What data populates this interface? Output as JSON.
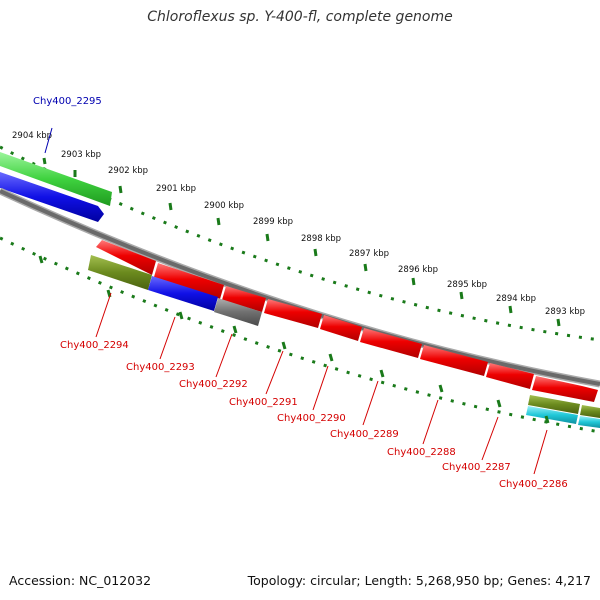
{
  "title": "Chloroflexus sp. Y-400-fl, complete genome",
  "footer": {
    "accession": "Accession: NC_012032",
    "summary": "Topology: circular; Length: 5,268,950 bp; Genes: 4,217"
  },
  "scale_labels": [
    "2904 kbp",
    "2903 kbp",
    "2902 kbp",
    "2901 kbp",
    "2900 kbp",
    "2899 kbp",
    "2898 kbp",
    "2897 kbp",
    "2896 kbp",
    "2895 kbp",
    "2894 kbp",
    "2893 kbp"
  ],
  "gene_labels_top": [
    "Chy400_2295"
  ],
  "gene_labels_bottom": [
    "Chy400_2294",
    "Chy400_2293",
    "Chy400_2292",
    "Chy400_2291",
    "Chy400_2290",
    "Chy400_2289",
    "Chy400_2288",
    "Chy400_2287",
    "Chy400_2286"
  ],
  "colors": {
    "green": "#3fd23f",
    "blue": "#1010e6",
    "red": "#ee0000",
    "olive": "#6b8a1e",
    "gray": "#707070",
    "cyan": "#20c8d8",
    "tick_green": "#1a7a1a",
    "label_red": "#d40000",
    "label_blue": "#0000b0"
  }
}
